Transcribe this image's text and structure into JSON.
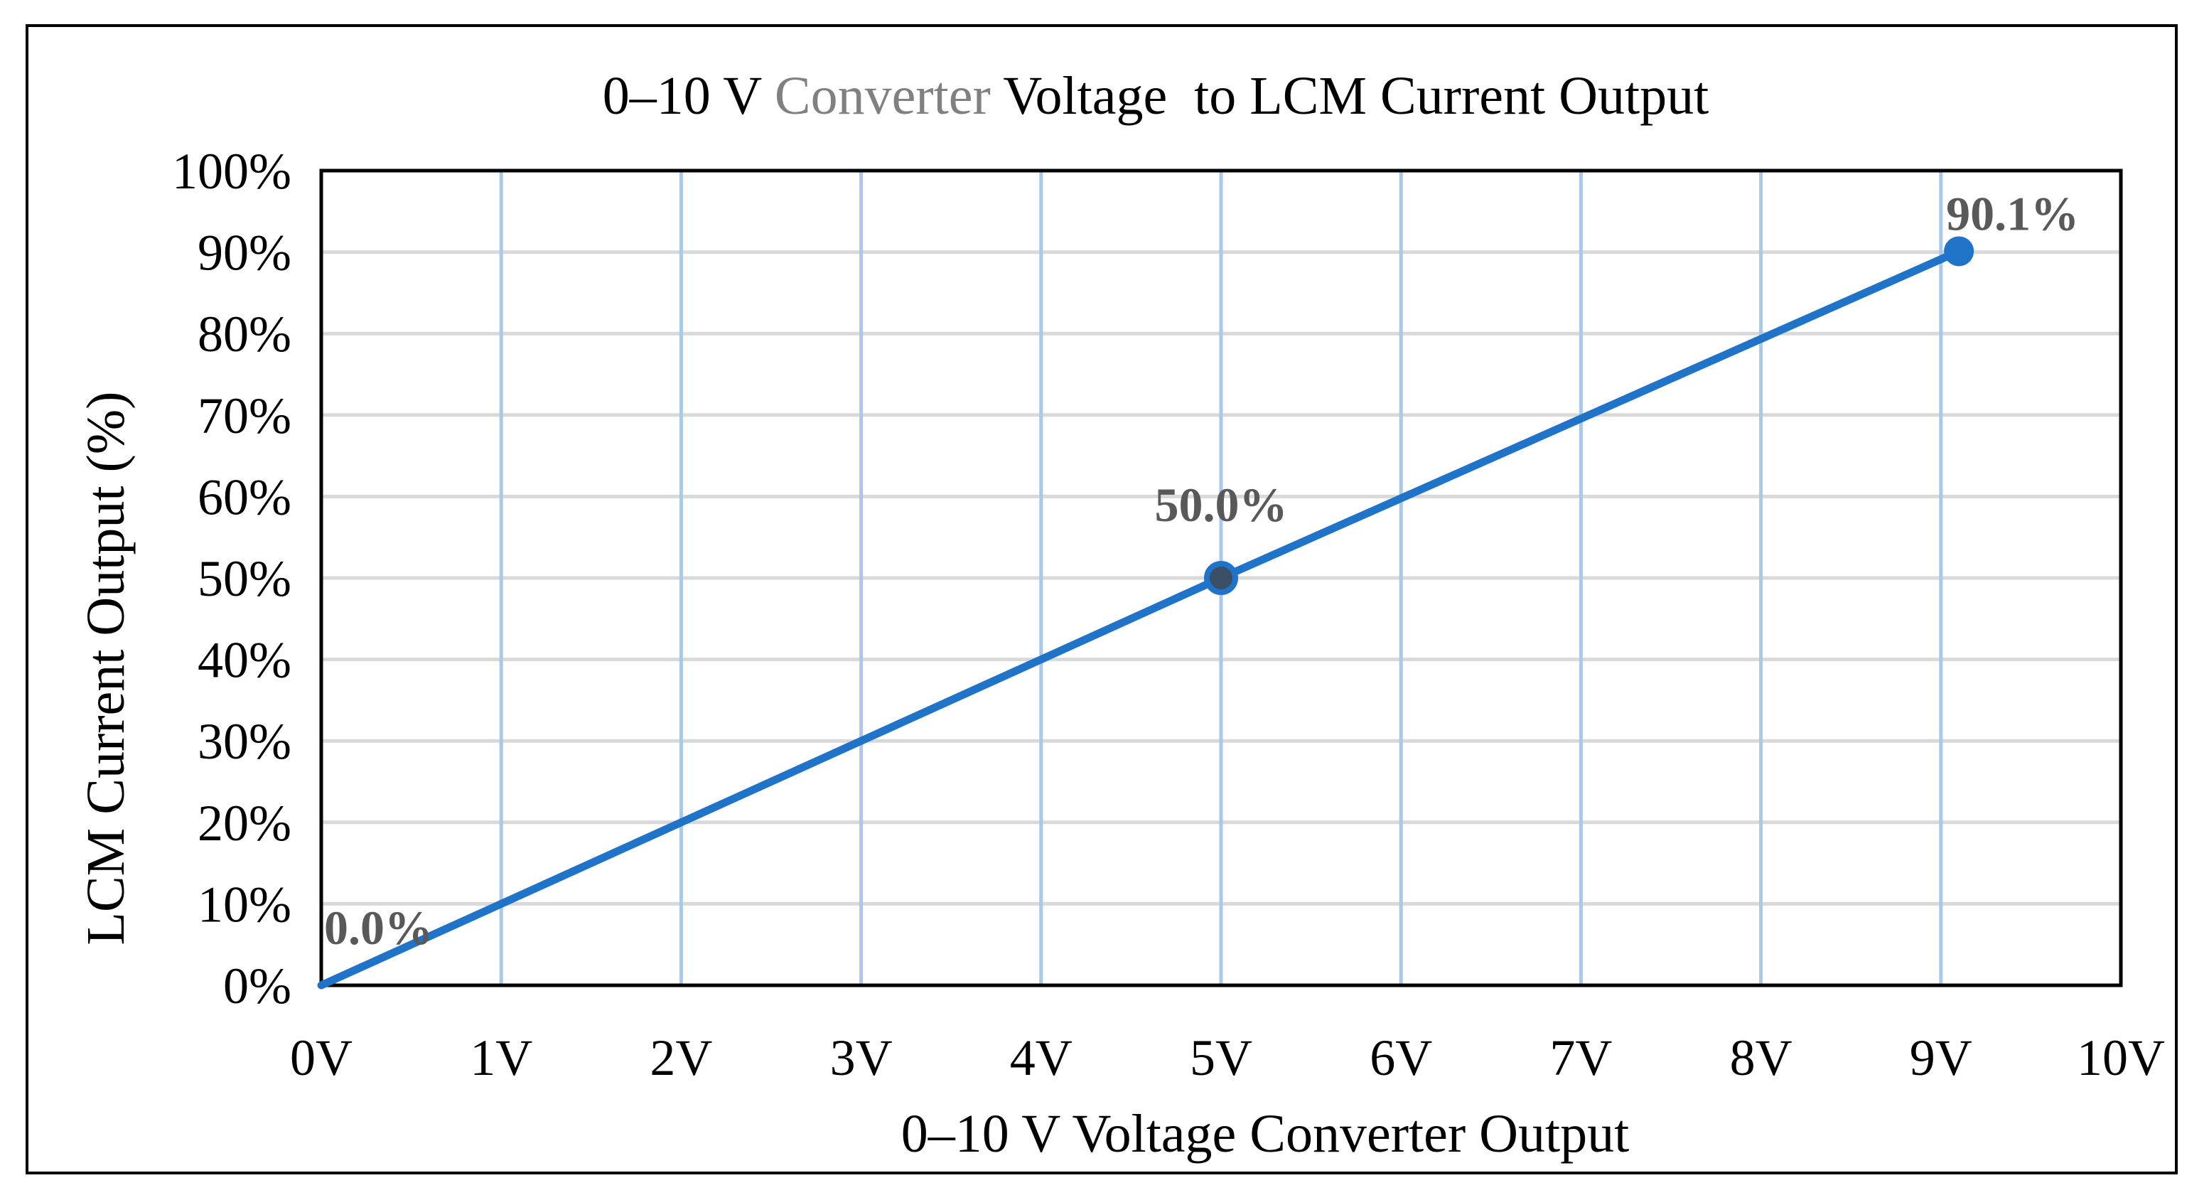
{
  "chart_data": {
    "type": "line",
    "title_parts": [
      {
        "text": "0–10 V ",
        "color": "#000000"
      },
      {
        "text": "Converter",
        "color": "#808080"
      },
      {
        "text": " Voltage  to LCM Current Output",
        "color": "#000000"
      }
    ],
    "xlabel": "0–10 V Voltage Converter Output",
    "ylabel": "LCM Current Output (%)",
    "x_ticks": [
      "0V",
      "1V",
      "2V",
      "3V",
      "4V",
      "5V",
      "6V",
      "7V",
      "8V",
      "9V",
      "10V"
    ],
    "y_ticks": [
      "0%",
      "10%",
      "20%",
      "30%",
      "40%",
      "50%",
      "60%",
      "70%",
      "80%",
      "90%",
      "100%"
    ],
    "xlim": [
      0,
      10
    ],
    "ylim": [
      0,
      100
    ],
    "grid": true,
    "series": [
      {
        "name": "LCM Current Output",
        "color": "#1f74c9",
        "points": [
          {
            "x": 0,
            "y": 0.0,
            "label": "0.0%"
          },
          {
            "x": 5,
            "y": 50.0,
            "label": "50.0%"
          },
          {
            "x": 9.1,
            "y": 90.1,
            "label": "90.1%"
          }
        ]
      }
    ]
  }
}
